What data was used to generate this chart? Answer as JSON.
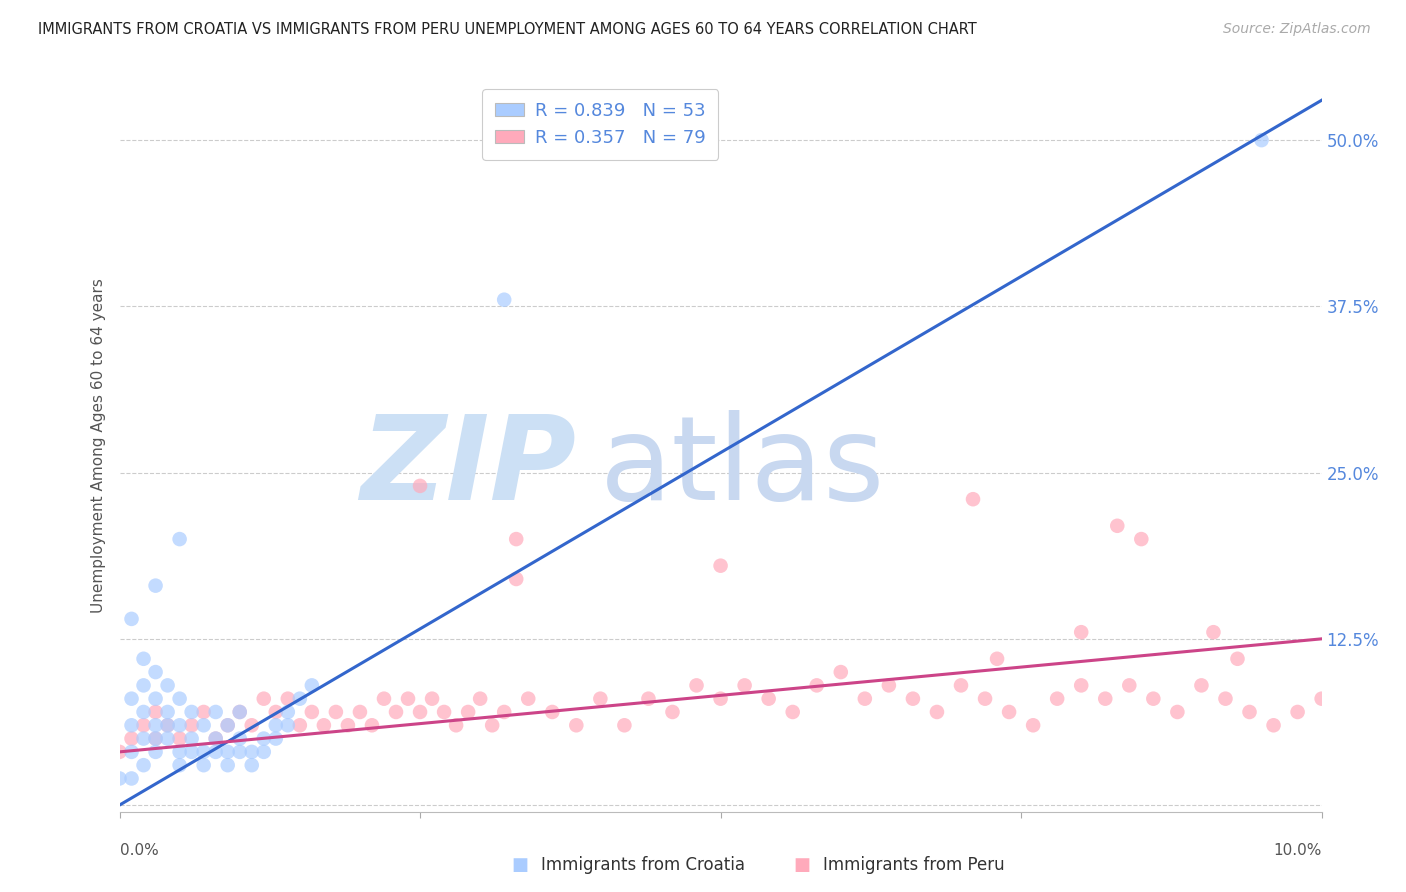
{
  "title": "IMMIGRANTS FROM CROATIA VS IMMIGRANTS FROM PERU UNEMPLOYMENT AMONG AGES 60 TO 64 YEARS CORRELATION CHART",
  "source": "Source: ZipAtlas.com",
  "ylabel": "Unemployment Among Ages 60 to 64 years",
  "xlim": [
    0.0,
    0.1
  ],
  "ylim": [
    -0.005,
    0.545
  ],
  "ytick_vals": [
    0.0,
    0.125,
    0.25,
    0.375,
    0.5
  ],
  "ytick_labels_right": [
    "",
    "12.5%",
    "25.0%",
    "37.5%",
    "50.0%"
  ],
  "xtick_vals": [
    0.0,
    0.025,
    0.05,
    0.075,
    0.1
  ],
  "croatia_R": 0.839,
  "croatia_N": 53,
  "peru_R": 0.357,
  "peru_N": 79,
  "croatia_color": "#aaccff",
  "croatia_line_color": "#3366cc",
  "peru_color": "#ffaabb",
  "peru_line_color": "#cc4488",
  "background_color": "#ffffff",
  "grid_color": "#cccccc",
  "title_color": "#222222",
  "right_label_color": "#5588dd",
  "watermark_zip_color": "#cce0f5",
  "watermark_atlas_color": "#c8d8f0",
  "croatia_x": [
    0.001,
    0.001,
    0.001,
    0.002,
    0.002,
    0.002,
    0.003,
    0.003,
    0.003,
    0.003,
    0.004,
    0.004,
    0.004,
    0.005,
    0.005,
    0.005,
    0.006,
    0.006,
    0.007,
    0.007,
    0.008,
    0.008,
    0.009,
    0.009,
    0.01,
    0.01,
    0.011,
    0.012,
    0.013,
    0.014,
    0.015,
    0.016,
    0.001,
    0.002,
    0.003,
    0.004,
    0.005,
    0.006,
    0.007,
    0.008,
    0.009,
    0.01,
    0.011,
    0.012,
    0.013,
    0.014,
    0.0,
    0.001,
    0.002,
    0.003,
    0.032,
    0.005,
    0.095
  ],
  "croatia_y": [
    0.04,
    0.06,
    0.08,
    0.05,
    0.07,
    0.09,
    0.04,
    0.06,
    0.08,
    0.1,
    0.05,
    0.07,
    0.09,
    0.04,
    0.06,
    0.08,
    0.05,
    0.07,
    0.04,
    0.06,
    0.05,
    0.07,
    0.04,
    0.06,
    0.05,
    0.07,
    0.04,
    0.05,
    0.06,
    0.07,
    0.08,
    0.09,
    0.02,
    0.03,
    0.05,
    0.06,
    0.03,
    0.04,
    0.03,
    0.04,
    0.03,
    0.04,
    0.03,
    0.04,
    0.05,
    0.06,
    0.02,
    0.14,
    0.11,
    0.165,
    0.38,
    0.2,
    0.5
  ],
  "peru_x": [
    0.0,
    0.001,
    0.002,
    0.003,
    0.003,
    0.004,
    0.005,
    0.006,
    0.007,
    0.008,
    0.009,
    0.01,
    0.011,
    0.012,
    0.013,
    0.014,
    0.015,
    0.016,
    0.017,
    0.018,
    0.019,
    0.02,
    0.021,
    0.022,
    0.023,
    0.024,
    0.025,
    0.026,
    0.027,
    0.028,
    0.029,
    0.03,
    0.031,
    0.032,
    0.034,
    0.036,
    0.038,
    0.04,
    0.042,
    0.044,
    0.046,
    0.048,
    0.05,
    0.052,
    0.054,
    0.056,
    0.058,
    0.06,
    0.062,
    0.064,
    0.066,
    0.068,
    0.07,
    0.072,
    0.074,
    0.076,
    0.078,
    0.08,
    0.082,
    0.084,
    0.086,
    0.088,
    0.09,
    0.092,
    0.094,
    0.096,
    0.098,
    0.1,
    0.025,
    0.033,
    0.071,
    0.073,
    0.083,
    0.085,
    0.091,
    0.093,
    0.033,
    0.05,
    0.08
  ],
  "peru_y": [
    0.04,
    0.05,
    0.06,
    0.05,
    0.07,
    0.06,
    0.05,
    0.06,
    0.07,
    0.05,
    0.06,
    0.07,
    0.06,
    0.08,
    0.07,
    0.08,
    0.06,
    0.07,
    0.06,
    0.07,
    0.06,
    0.07,
    0.06,
    0.08,
    0.07,
    0.08,
    0.07,
    0.08,
    0.07,
    0.06,
    0.07,
    0.08,
    0.06,
    0.07,
    0.08,
    0.07,
    0.06,
    0.08,
    0.06,
    0.08,
    0.07,
    0.09,
    0.08,
    0.09,
    0.08,
    0.07,
    0.09,
    0.1,
    0.08,
    0.09,
    0.08,
    0.07,
    0.09,
    0.08,
    0.07,
    0.06,
    0.08,
    0.09,
    0.08,
    0.09,
    0.08,
    0.07,
    0.09,
    0.08,
    0.07,
    0.06,
    0.07,
    0.08,
    0.24,
    0.2,
    0.23,
    0.11,
    0.21,
    0.2,
    0.13,
    0.11,
    0.17,
    0.18,
    0.13
  ]
}
